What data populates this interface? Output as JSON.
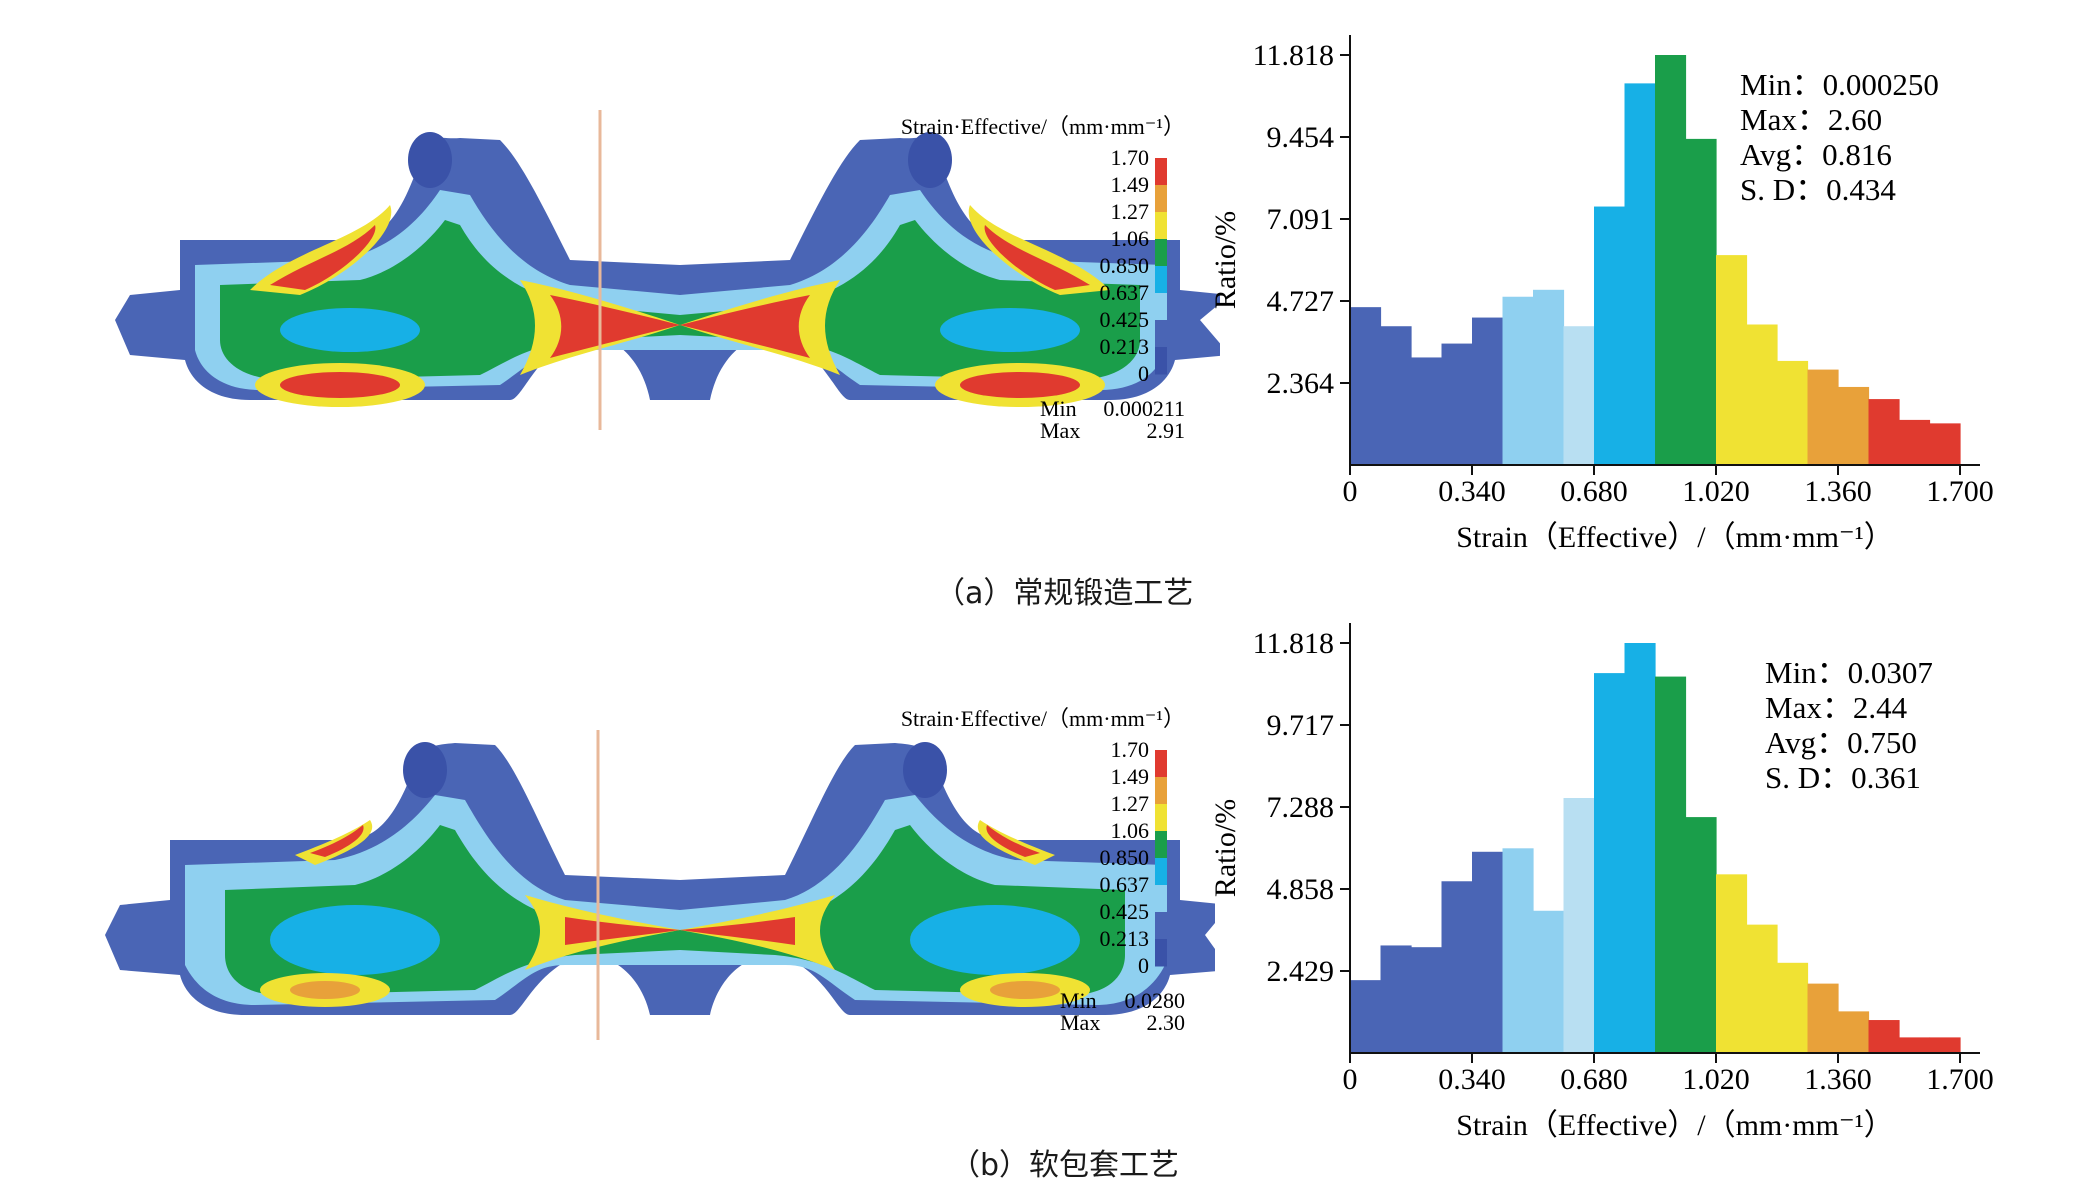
{
  "figures": [
    {
      "id": "a",
      "caption": "（a）常规锻造工艺",
      "contour": {
        "legend_title": "Strain·Effective/（mm·mm⁻¹）",
        "legend_ticks": [
          "1.70",
          "1.49",
          "1.27",
          "1.06",
          "0.850",
          "0.637",
          "0.425",
          "0.213",
          "0"
        ],
        "legend_colors": [
          "#e03a2f",
          "#e8a13a",
          "#f0e233",
          "#1a9e4a",
          "#17b0e6",
          "#8fd0f0",
          "#4a65b5",
          "#3a52a8"
        ],
        "min_label": "Min",
        "min_value": "0.000211",
        "max_label": "Max",
        "max_value": "2.91"
      }
    },
    {
      "id": "b",
      "caption": "（b）软包套工艺",
      "contour": {
        "legend_title": "Strain·Effective/（mm·mm⁻¹）",
        "legend_ticks": [
          "1.70",
          "1.49",
          "1.27",
          "1.06",
          "0.850",
          "0.637",
          "0.425",
          "0.213",
          "0"
        ],
        "legend_colors": [
          "#e03a2f",
          "#e8a13a",
          "#f0e233",
          "#1a9e4a",
          "#17b0e6",
          "#8fd0f0",
          "#4a65b5",
          "#3a52a8"
        ],
        "min_label": "Min",
        "min_value": "0.0280",
        "max_label": "Max",
        "max_value": "2.30"
      }
    }
  ],
  "chart_data": [
    {
      "type": "bar",
      "panel": "a",
      "xlabel": "Strain（Effective）/（mm·mm⁻¹）",
      "ylabel": "Ratio/%",
      "xlim": [
        0,
        1.7
      ],
      "ylim": [
        0,
        11.818
      ],
      "xticks": [
        "0",
        "0.340",
        "0.680",
        "1.020",
        "1.360",
        "1.700"
      ],
      "yticks": [
        "2.364",
        "4.727",
        "7.091",
        "9.454",
        "11.818"
      ],
      "bin_width": 0.085,
      "values": [
        4.55,
        4.0,
        3.1,
        3.5,
        4.25,
        4.85,
        5.05,
        4.0,
        7.45,
        11.0,
        11.818,
        9.4,
        6.05,
        4.05,
        3.0,
        2.75,
        2.25,
        1.9,
        1.3,
        1.2
      ],
      "colors": [
        "#4a65b5",
        "#4a65b5",
        "#4a65b5",
        "#4a65b5",
        "#4a65b5",
        "#8fd0f0",
        "#8fd0f0",
        "#b8dff2",
        "#17b0e6",
        "#17b0e6",
        "#1a9e4a",
        "#1a9e4a",
        "#f0e233",
        "#f0e233",
        "#f0e233",
        "#e8a13a",
        "#e8a13a",
        "#e03a2f",
        "#e03a2f",
        "#e03a2f"
      ],
      "stats": [
        "Min：0.000250",
        "Max：2.60",
        "Avg：0.816",
        "S. D：0.434"
      ]
    },
    {
      "type": "bar",
      "panel": "b",
      "xlabel": "Strain（Effective）/（mm·mm⁻¹）",
      "ylabel": "Ratio/%",
      "xlim": [
        0,
        1.7
      ],
      "ylim": [
        0,
        11.818
      ],
      "xticks": [
        "0",
        "0.340",
        "0.680",
        "1.020",
        "1.360",
        "1.700"
      ],
      "yticks": [
        "2.429",
        "4.858",
        "7.288",
        "9.717",
        "11.818"
      ],
      "bin_width": 0.085,
      "values": [
        2.1,
        3.1,
        3.05,
        4.95,
        5.8,
        5.9,
        4.1,
        7.35,
        10.95,
        11.818,
        10.85,
        6.8,
        5.15,
        3.7,
        2.6,
        2.0,
        1.2,
        0.95,
        0.45,
        0.45
      ],
      "colors": [
        "#4a65b5",
        "#4a65b5",
        "#4a65b5",
        "#4a65b5",
        "#4a65b5",
        "#8fd0f0",
        "#8fd0f0",
        "#b8dff2",
        "#17b0e6",
        "#17b0e6",
        "#1a9e4a",
        "#1a9e4a",
        "#f0e233",
        "#f0e233",
        "#f0e233",
        "#e8a13a",
        "#e8a13a",
        "#e03a2f",
        "#e03a2f",
        "#e03a2f"
      ],
      "stats": [
        "Min：0.0307",
        "Max：2.44",
        "Avg：0.750",
        "S. D：0.361"
      ]
    }
  ]
}
